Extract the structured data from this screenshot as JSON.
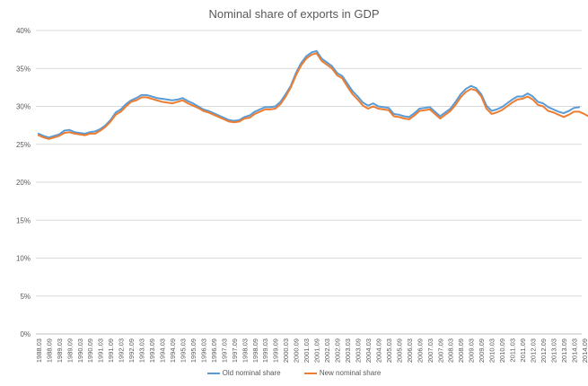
{
  "chart_data": {
    "type": "line",
    "title": "Nominal share of exports in GDP",
    "xlabel": "",
    "ylabel": "",
    "ylim": [
      0,
      40
    ],
    "y_ticks": [
      "0%",
      "5%",
      "10%",
      "15%",
      "20%",
      "25%",
      "30%",
      "35%",
      "40%"
    ],
    "x_tick_labels": [
      "1988.03",
      "1988.09",
      "1989.03",
      "1989.09",
      "1990.03",
      "1990.09",
      "1991.03",
      "1991.09",
      "1992.03",
      "1992.09",
      "1993.03",
      "1993.09",
      "1994.03",
      "1994.09",
      "1995.03",
      "1995.09",
      "1996.03",
      "1996.09",
      "1997.03",
      "1997.09",
      "1998.03",
      "1998.09",
      "1999.03",
      "1999.09",
      "2000.03",
      "2000.09",
      "2001.03",
      "2001.09",
      "2002.03",
      "2002.09",
      "2003.03",
      "2003.09",
      "2004.03",
      "2004.09",
      "2005.03",
      "2005.09",
      "2006.03",
      "2006.09",
      "2007.03",
      "2007.09",
      "2008.03",
      "2008.09",
      "2009.03",
      "2009.09",
      "2010.03",
      "2010.09",
      "2011.03",
      "2011.09",
      "2012.03",
      "2012.09",
      "2013.03",
      "2013.09",
      "2014.03",
      "2014.09"
    ],
    "grid": true,
    "legend_position": "bottom",
    "series": [
      {
        "name": "Old nominal share",
        "color": "#5B9BD5",
        "values": [
          26.4,
          26.1,
          25.9,
          26.1,
          26.3,
          26.8,
          26.9,
          26.6,
          26.5,
          26.4,
          26.6,
          26.7,
          27.0,
          27.5,
          28.2,
          29.2,
          29.6,
          30.3,
          30.8,
          31.1,
          31.5,
          31.5,
          31.3,
          31.1,
          31.0,
          30.9,
          30.8,
          30.9,
          31.1,
          30.7,
          30.4,
          30.0,
          29.6,
          29.4,
          29.1,
          28.8,
          28.5,
          28.2,
          28.1,
          28.2,
          28.6,
          28.8,
          29.3,
          29.6,
          29.9,
          29.9,
          30.0,
          30.6,
          31.6,
          32.7,
          34.4,
          35.7,
          36.6,
          37.1,
          37.3,
          36.3,
          35.8,
          35.3,
          34.4,
          34.0,
          33.0,
          32.0,
          31.3,
          30.5,
          30.1,
          30.4,
          30.0,
          29.9,
          29.8,
          29.0,
          28.9,
          28.7,
          28.6,
          29.1,
          29.7,
          29.8,
          29.9,
          29.3,
          28.7,
          29.2,
          29.7,
          30.6,
          31.6,
          32.3,
          32.7,
          32.4,
          31.6,
          30.1,
          29.4,
          29.6,
          29.9,
          30.4,
          30.9,
          31.3,
          31.3,
          31.7,
          31.3,
          30.6,
          30.4,
          29.9,
          29.6,
          29.3,
          29.1,
          29.4,
          29.8,
          29.9
        ]
      },
      {
        "name": "New nominal share",
        "color": "#ED7D31",
        "values": [
          26.2,
          25.9,
          25.7,
          25.9,
          26.1,
          26.5,
          26.6,
          26.4,
          26.3,
          26.2,
          26.4,
          26.4,
          26.8,
          27.3,
          28.0,
          28.9,
          29.3,
          30.0,
          30.6,
          30.8,
          31.2,
          31.2,
          31.0,
          30.8,
          30.6,
          30.5,
          30.4,
          30.6,
          30.8,
          30.4,
          30.1,
          29.8,
          29.4,
          29.2,
          28.9,
          28.6,
          28.3,
          28.0,
          27.9,
          28.0,
          28.4,
          28.5,
          29.0,
          29.3,
          29.6,
          29.6,
          29.7,
          30.3,
          31.3,
          32.5,
          34.1,
          35.4,
          36.3,
          36.8,
          37.0,
          36.0,
          35.5,
          35.0,
          34.1,
          33.7,
          32.6,
          31.6,
          30.9,
          30.1,
          29.7,
          30.0,
          29.7,
          29.6,
          29.5,
          28.7,
          28.6,
          28.4,
          28.3,
          28.8,
          29.4,
          29.5,
          29.6,
          29.0,
          28.4,
          28.9,
          29.4,
          30.2,
          31.2,
          31.9,
          32.3,
          32.1,
          31.3,
          29.7,
          29.0,
          29.2,
          29.5,
          30.0,
          30.5,
          30.9,
          31.0,
          31.3,
          30.9,
          30.2,
          30.0,
          29.4,
          29.2,
          28.9,
          28.6,
          28.9,
          29.3,
          29.3,
          29.0,
          28.6
        ]
      }
    ]
  }
}
